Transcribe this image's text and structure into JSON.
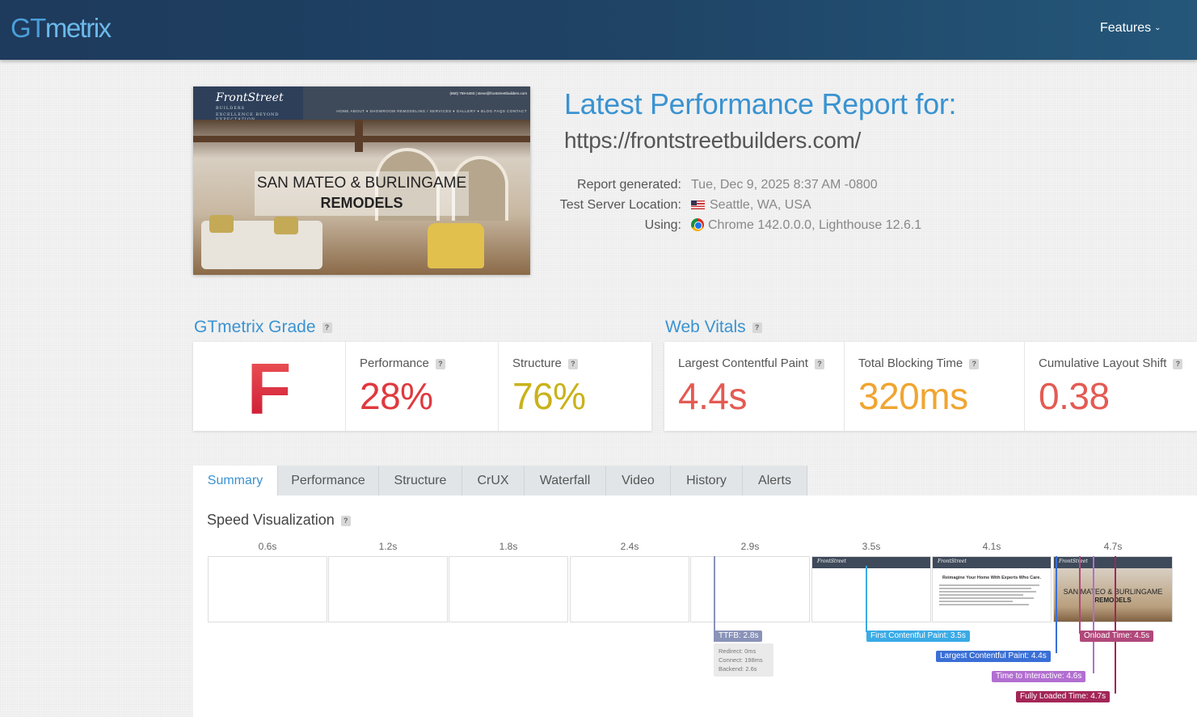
{
  "header": {
    "logo_gt": "GT",
    "logo_metrix": "metrix",
    "features_label": "Features",
    "chevron_icon": "chevron-down-icon"
  },
  "thumbnail": {
    "brand": "FrontStreet",
    "brand_sub": "BUILDERS",
    "tagline": "EXCELLENCE BEYOND EXPECTATION",
    "contact": "(650) 759-6493  |  steve@frontstreetbuilders.com",
    "nav": "HOME   ABOUT ▾   SHOWROOM   REMODELING / SERVICES ▾   GALLERY ▾   BLOG   FAQS   CONTACT",
    "headline_1": "SAN MATEO & BURLINGAME",
    "headline_2": "REMODELS"
  },
  "report": {
    "title": "Latest Performance Report for:",
    "url": "https://frontstreetbuilders.com/",
    "generated_label": "Report generated:",
    "generated_value": "Tue, Dec 9, 2025 8:37 AM -0800",
    "location_label": "Test Server Location:",
    "location_value": "Seattle, WA, USA",
    "using_label": "Using:",
    "using_value": "Chrome 142.0.0.0, Lighthouse 12.6.1"
  },
  "grade": {
    "heading": "GTmetrix Grade",
    "letter": "F",
    "performance_label": "Performance",
    "performance_value": "28%",
    "structure_label": "Structure",
    "structure_value": "76%",
    "colors": {
      "grade": "#d8282e",
      "performance": "#e0393e",
      "structure": "#c9b21a"
    }
  },
  "vitals": {
    "heading": "Web Vitals",
    "lcp_label": "Largest Contentful Paint",
    "lcp_value": "4.4s",
    "tbt_label": "Total Blocking Time",
    "tbt_value": "320ms",
    "cls_label": "Cumulative Layout Shift",
    "cls_value": "0.38",
    "colors": {
      "lcp": "#e35b53",
      "tbt": "#f0a531",
      "cls": "#e35b53"
    }
  },
  "tabs": [
    "Summary",
    "Performance",
    "Structure",
    "CrUX",
    "Waterfall",
    "Video",
    "History",
    "Alerts"
  ],
  "active_tab": "Summary",
  "speed_viz": {
    "title": "Speed Visualization",
    "frames": [
      "0.6s",
      "1.2s",
      "1.8s",
      "2.4s",
      "2.9s",
      "3.5s",
      "4.1s",
      "4.7s"
    ],
    "frame_text_heading": "Reimagine Your Home With Experts Who Care.",
    "markers": {
      "ttfb": "TTFB: 2.8s",
      "ttfb_redirect": "Redirect: 0ms",
      "ttfb_connect": "Connect: 198ms",
      "ttfb_backend": "Backend: 2.6s",
      "fcp": "First Contentful Paint: 3.5s",
      "lcp": "Largest Contentful Paint: 4.4s",
      "tti": "Time to Interactive: 4.6s",
      "onload": "Onload Time: 4.5s",
      "fully": "Fully Loaded Time: 4.7s"
    },
    "marker_colors": {
      "ttfb": "#8a93b8",
      "fcp": "#3aabe6",
      "lcp": "#3a6fd6",
      "tti": "#b26ed1",
      "onload": "#b0487a",
      "fully": "#a32658"
    }
  }
}
